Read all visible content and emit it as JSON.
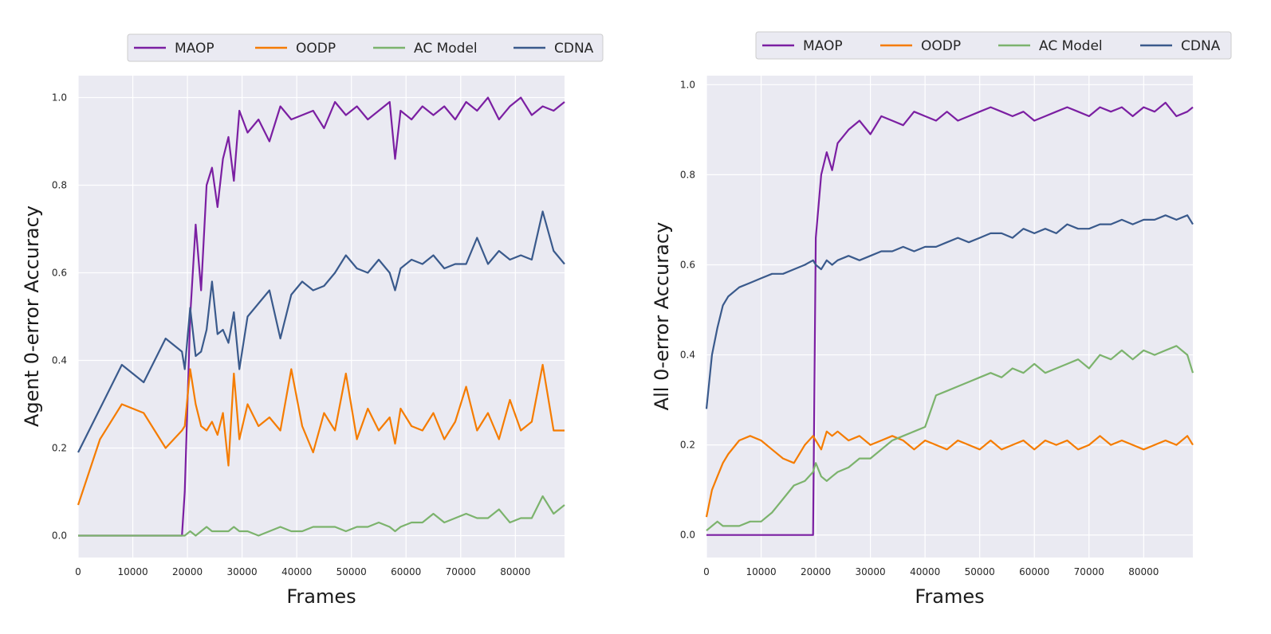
{
  "colors": {
    "panel_bg": "#eaeaf2",
    "grid": "#ffffff",
    "MAOP": "#7b1fa2",
    "OODP": "#f57c00",
    "AC Model": "#7cb36d",
    "CDNA": "#3a5a8c"
  },
  "chart_data": [
    {
      "type": "line",
      "title": "",
      "xlabel": "Frames",
      "ylabel": "Agent  0-error  Accuracy",
      "xlim": [
        0,
        89000
      ],
      "ylim": [
        -0.05,
        1.05
      ],
      "xticks": [
        0,
        10000,
        20000,
        30000,
        40000,
        50000,
        60000,
        70000,
        80000
      ],
      "yticks": [
        0.0,
        0.2,
        0.4,
        0.6,
        0.8,
        1.0
      ],
      "xtick_labels": [
        "0",
        "10000",
        "20000",
        "30000",
        "40000",
        "50000",
        "60000",
        "70000",
        "80000"
      ],
      "ytick_labels": [
        "0.0",
        "0.2",
        "0.4",
        "0.6",
        "0.8",
        "1.0"
      ],
      "grid": true,
      "legend": {
        "position": "top-center",
        "entries": [
          "MAOP",
          "OODP",
          "AC Model",
          "CDNA"
        ]
      },
      "x": [
        0,
        4000,
        8000,
        12000,
        16000,
        19000,
        19500,
        20500,
        21500,
        22500,
        23500,
        24500,
        25500,
        26500,
        27500,
        28500,
        29500,
        31000,
        33000,
        35000,
        37000,
        39000,
        41000,
        43000,
        45000,
        47000,
        49000,
        51000,
        53000,
        55000,
        57000,
        58000,
        59000,
        61000,
        63000,
        65000,
        67000,
        69000,
        71000,
        73000,
        75000,
        77000,
        79000,
        81000,
        83000,
        85000,
        87000,
        89000
      ],
      "series": [
        {
          "name": "MAOP",
          "values": [
            0.0,
            0.0,
            0.0,
            0.0,
            0.0,
            0.0,
            0.1,
            0.5,
            0.71,
            0.56,
            0.8,
            0.84,
            0.75,
            0.86,
            0.91,
            0.81,
            0.97,
            0.92,
            0.95,
            0.9,
            0.98,
            0.95,
            0.96,
            0.97,
            0.93,
            0.99,
            0.96,
            0.98,
            0.95,
            0.97,
            0.99,
            0.86,
            0.97,
            0.95,
            0.98,
            0.96,
            0.98,
            0.95,
            0.99,
            0.97,
            1.0,
            0.95,
            0.98,
            1.0,
            0.96,
            0.98,
            0.97,
            0.99
          ]
        },
        {
          "name": "OODP",
          "values": [
            0.07,
            0.22,
            0.3,
            0.28,
            0.2,
            0.24,
            0.25,
            0.38,
            0.3,
            0.25,
            0.24,
            0.26,
            0.23,
            0.28,
            0.16,
            0.37,
            0.22,
            0.3,
            0.25,
            0.27,
            0.24,
            0.38,
            0.25,
            0.19,
            0.28,
            0.24,
            0.37,
            0.22,
            0.29,
            0.24,
            0.27,
            0.21,
            0.29,
            0.25,
            0.24,
            0.28,
            0.22,
            0.26,
            0.34,
            0.24,
            0.28,
            0.22,
            0.31,
            0.24,
            0.26,
            0.39,
            0.24,
            0.24
          ]
        },
        {
          "name": "AC Model",
          "values": [
            0.0,
            0.0,
            0.0,
            0.0,
            0.0,
            0.0,
            0.0,
            0.01,
            0.0,
            0.01,
            0.02,
            0.01,
            0.01,
            0.01,
            0.01,
            0.02,
            0.01,
            0.01,
            0.0,
            0.01,
            0.02,
            0.01,
            0.01,
            0.02,
            0.02,
            0.02,
            0.01,
            0.02,
            0.02,
            0.03,
            0.02,
            0.01,
            0.02,
            0.03,
            0.03,
            0.05,
            0.03,
            0.04,
            0.05,
            0.04,
            0.04,
            0.06,
            0.03,
            0.04,
            0.04,
            0.09,
            0.05,
            0.07
          ]
        },
        {
          "name": "CDNA",
          "values": [
            0.19,
            0.29,
            0.39,
            0.35,
            0.45,
            0.42,
            0.38,
            0.52,
            0.41,
            0.42,
            0.47,
            0.58,
            0.46,
            0.47,
            0.44,
            0.51,
            0.38,
            0.5,
            0.53,
            0.56,
            0.45,
            0.55,
            0.58,
            0.56,
            0.57,
            0.6,
            0.64,
            0.61,
            0.6,
            0.63,
            0.6,
            0.56,
            0.61,
            0.63,
            0.62,
            0.64,
            0.61,
            0.62,
            0.62,
            0.68,
            0.62,
            0.65,
            0.63,
            0.64,
            0.63,
            0.74,
            0.65,
            0.62
          ]
        }
      ]
    },
    {
      "type": "line",
      "title": "",
      "xlabel": "Frames",
      "ylabel": "All  0-error  Accuracy",
      "xlim": [
        0,
        89000
      ],
      "ylim": [
        -0.05,
        1.02
      ],
      "xticks": [
        0,
        10000,
        20000,
        30000,
        40000,
        50000,
        60000,
        70000,
        80000
      ],
      "yticks": [
        0.0,
        0.2,
        0.4,
        0.6,
        0.8,
        1.0
      ],
      "xtick_labels": [
        "0",
        "10000",
        "20000",
        "30000",
        "40000",
        "50000",
        "60000",
        "70000",
        "80000"
      ],
      "ytick_labels": [
        "0.0",
        "0.2",
        "0.4",
        "0.6",
        "0.8",
        "1.0"
      ],
      "grid": true,
      "legend": {
        "position": "top-center",
        "entries": [
          "MAOP",
          "OODP",
          "AC Model",
          "CDNA"
        ]
      },
      "x": [
        0,
        1000,
        2000,
        3000,
        4000,
        6000,
        8000,
        10000,
        12000,
        14000,
        16000,
        18000,
        19500,
        20000,
        21000,
        22000,
        23000,
        24000,
        26000,
        28000,
        30000,
        32000,
        34000,
        36000,
        38000,
        40000,
        42000,
        44000,
        46000,
        48000,
        50000,
        52000,
        54000,
        56000,
        58000,
        60000,
        62000,
        64000,
        66000,
        68000,
        70000,
        72000,
        74000,
        76000,
        78000,
        80000,
        82000,
        84000,
        86000,
        88000,
        89000
      ],
      "series": [
        {
          "name": "MAOP",
          "values": [
            0.0,
            0.0,
            0.0,
            0.0,
            0.0,
            0.0,
            0.0,
            0.0,
            0.0,
            0.0,
            0.0,
            0.0,
            0.0,
            0.66,
            0.8,
            0.85,
            0.81,
            0.87,
            0.9,
            0.92,
            0.89,
            0.93,
            0.92,
            0.91,
            0.94,
            0.93,
            0.92,
            0.94,
            0.92,
            0.93,
            0.94,
            0.95,
            0.94,
            0.93,
            0.94,
            0.92,
            0.93,
            0.94,
            0.95,
            0.94,
            0.93,
            0.95,
            0.94,
            0.95,
            0.93,
            0.95,
            0.94,
            0.96,
            0.93,
            0.94,
            0.95
          ]
        },
        {
          "name": "OODP",
          "values": [
            0.04,
            0.1,
            0.13,
            0.16,
            0.18,
            0.21,
            0.22,
            0.21,
            0.19,
            0.17,
            0.16,
            0.2,
            0.22,
            0.21,
            0.19,
            0.23,
            0.22,
            0.23,
            0.21,
            0.22,
            0.2,
            0.21,
            0.22,
            0.21,
            0.19,
            0.21,
            0.2,
            0.19,
            0.21,
            0.2,
            0.19,
            0.21,
            0.19,
            0.2,
            0.21,
            0.19,
            0.21,
            0.2,
            0.21,
            0.19,
            0.2,
            0.22,
            0.2,
            0.21,
            0.2,
            0.19,
            0.2,
            0.21,
            0.2,
            0.22,
            0.2
          ]
        },
        {
          "name": "AC Model",
          "values": [
            0.01,
            0.02,
            0.03,
            0.02,
            0.02,
            0.02,
            0.03,
            0.03,
            0.05,
            0.08,
            0.11,
            0.12,
            0.14,
            0.16,
            0.13,
            0.12,
            0.13,
            0.14,
            0.15,
            0.17,
            0.17,
            0.19,
            0.21,
            0.22,
            0.23,
            0.24,
            0.31,
            0.32,
            0.33,
            0.34,
            0.35,
            0.36,
            0.35,
            0.37,
            0.36,
            0.38,
            0.36,
            0.37,
            0.38,
            0.39,
            0.37,
            0.4,
            0.39,
            0.41,
            0.39,
            0.41,
            0.4,
            0.41,
            0.42,
            0.4,
            0.36
          ]
        },
        {
          "name": "CDNA",
          "values": [
            0.28,
            0.4,
            0.46,
            0.51,
            0.53,
            0.55,
            0.56,
            0.57,
            0.58,
            0.58,
            0.59,
            0.6,
            0.61,
            0.6,
            0.59,
            0.61,
            0.6,
            0.61,
            0.62,
            0.61,
            0.62,
            0.63,
            0.63,
            0.64,
            0.63,
            0.64,
            0.64,
            0.65,
            0.66,
            0.65,
            0.66,
            0.67,
            0.67,
            0.66,
            0.68,
            0.67,
            0.68,
            0.67,
            0.69,
            0.68,
            0.68,
            0.69,
            0.69,
            0.7,
            0.69,
            0.7,
            0.7,
            0.71,
            0.7,
            0.71,
            0.69
          ]
        }
      ]
    }
  ]
}
